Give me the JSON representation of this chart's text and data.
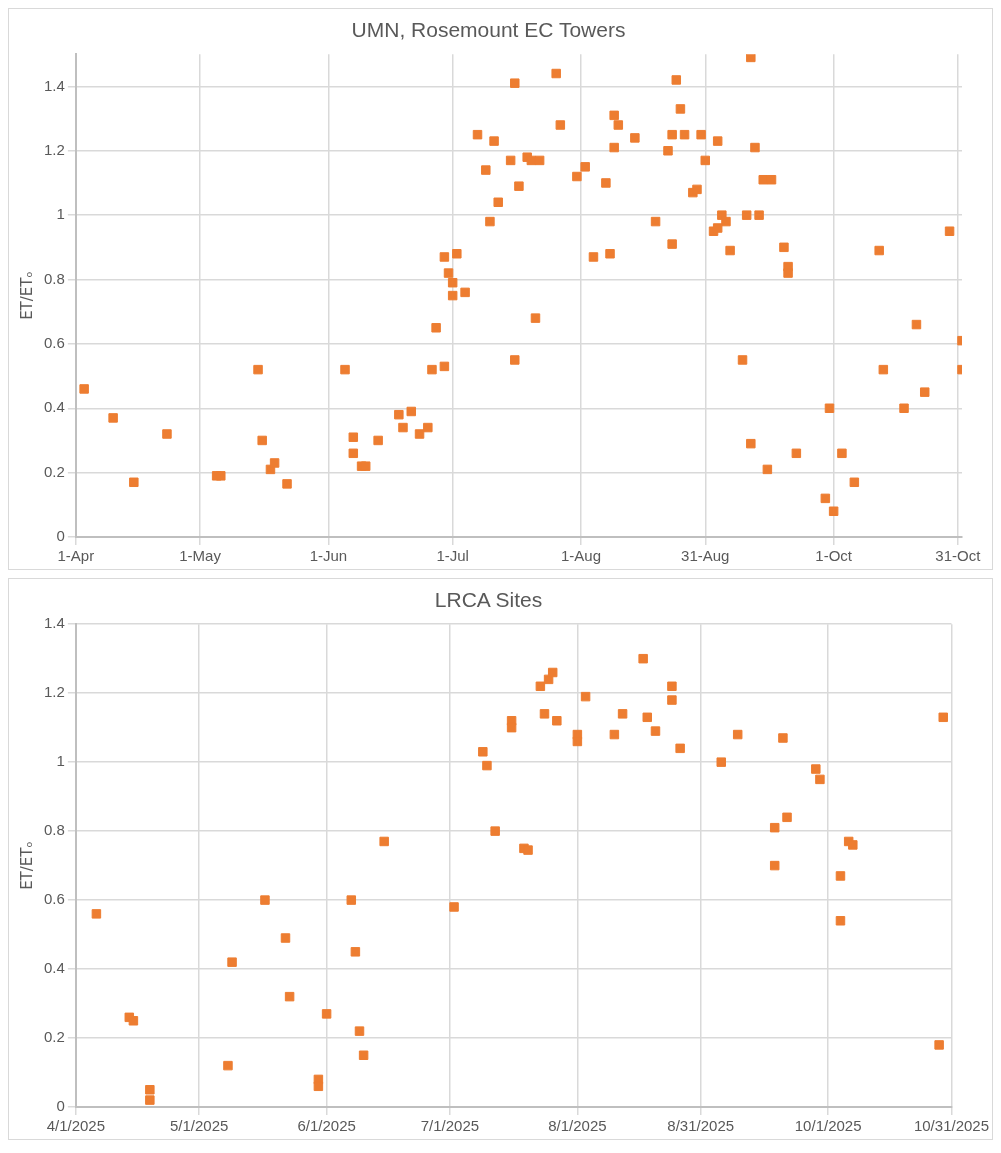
{
  "chart_data": [
    {
      "type": "scatter",
      "title": "UMN, Rosemount EC Towers",
      "ylabel": "ET/ETₒ",
      "color": "#ed7d31",
      "marker": "square",
      "grid": true,
      "legend": false,
      "x": [
        "--04-03",
        "--04-10",
        "--04-15",
        "--04-23",
        "--05-05",
        "--05-06",
        "--05-15",
        "--05-16",
        "--05-18",
        "--05-19",
        "--05-22",
        "--06-05",
        "--06-07",
        "--06-07",
        "--06-09",
        "--06-10",
        "--06-13",
        "--06-18",
        "--06-19",
        "--06-21",
        "--06-23",
        "--06-25",
        "--06-26",
        "--06-27",
        "--06-29",
        "--06-29",
        "--06-30",
        "--07-01",
        "--07-01",
        "--07-02",
        "--07-04",
        "--07-07",
        "--07-09",
        "--07-10",
        "--07-11",
        "--07-12",
        "--07-15",
        "--07-16",
        "--07-16",
        "--07-17",
        "--07-19",
        "--07-20",
        "--07-21",
        "--07-22",
        "--07-26",
        "--07-27",
        "--07-31",
        "--08-02",
        "--08-04",
        "--08-07",
        "--08-08",
        "--08-09",
        "--08-09",
        "--08-10",
        "--08-14",
        "--08-19",
        "--08-22",
        "--08-23",
        "--08-23",
        "--08-24",
        "--08-25",
        "--08-26",
        "--08-28",
        "--08-29",
        "--08-30",
        "--08-31",
        "--09-02",
        "--09-03",
        "--09-03",
        "--09-04",
        "--09-05",
        "--09-06",
        "--09-09",
        "--09-10",
        "--09-11",
        "--09-11",
        "--09-12",
        "--09-13",
        "--09-14",
        "--09-15",
        "--09-16",
        "--09-19",
        "--09-20",
        "--09-20",
        "--09-22",
        "--09-29",
        "--09-30",
        "--10-01",
        "--10-03",
        "--10-06",
        "--10-12",
        "--10-13",
        "--10-18",
        "--10-21",
        "--10-23",
        "--10-29",
        "--11-01",
        "--11-01"
      ],
      "values": [
        0.46,
        0.37,
        0.17,
        0.32,
        0.19,
        0.19,
        0.52,
        0.3,
        0.21,
        0.23,
        0.165,
        0.52,
        0.31,
        0.26,
        0.22,
        0.22,
        0.3,
        0.38,
        0.34,
        0.39,
        0.32,
        0.34,
        0.52,
        0.65,
        0.53,
        0.87,
        0.82,
        0.79,
        0.75,
        0.88,
        0.76,
        1.25,
        1.14,
        0.98,
        1.23,
        1.04,
        1.17,
        1.41,
        0.55,
        1.09,
        1.18,
        1.17,
        0.68,
        1.17,
        1.44,
        1.28,
        1.12,
        1.15,
        0.87,
        1.1,
        0.88,
        1.31,
        1.21,
        1.28,
        1.24,
        0.98,
        1.2,
        0.91,
        1.25,
        1.42,
        1.33,
        1.25,
        1.07,
        1.08,
        1.25,
        1.17,
        0.95,
        0.96,
        1.23,
        1.0,
        0.98,
        0.89,
        0.55,
        1.0,
        0.29,
        1.49,
        1.21,
        1.0,
        1.11,
        0.21,
        1.11,
        0.9,
        0.84,
        0.82,
        0.26,
        0.12,
        0.4,
        0.08,
        0.26,
        0.17,
        0.89,
        0.52,
        0.4,
        0.66,
        0.45,
        0.95,
        0.61,
        0.52
      ],
      "xlim": [
        "--04-01",
        "--11-01"
      ],
      "xticks": [
        {
          "value": "--04-01",
          "label": "1-Apr"
        },
        {
          "value": "--05-01",
          "label": "1-May"
        },
        {
          "value": "--06-01",
          "label": "1-Jun"
        },
        {
          "value": "--07-01",
          "label": "1-Jul"
        },
        {
          "value": "--08-01",
          "label": "1-Aug"
        },
        {
          "value": "--08-31",
          "label": "31-Aug"
        },
        {
          "value": "--10-01",
          "label": "1-Oct"
        },
        {
          "value": "--10-31",
          "label": "31-Oct"
        }
      ],
      "ylim": [
        0,
        1.5
      ],
      "yticks": [
        0,
        0.2,
        0.4,
        0.6,
        0.8,
        1,
        1.2,
        1.4
      ]
    },
    {
      "type": "scatter",
      "title": "LRCA Sites",
      "ylabel": "ET/ETₒ",
      "color": "#ed7d31",
      "marker": "square",
      "grid": true,
      "legend": false,
      "x": [
        "2025-04-06",
        "2025-04-14",
        "2025-04-15",
        "2025-04-19",
        "2025-04-19",
        "2025-05-08",
        "2025-05-09",
        "2025-05-17",
        "2025-05-22",
        "2025-05-23",
        "2025-05-30",
        "2025-05-30",
        "2025-06-01",
        "2025-06-07",
        "2025-06-08",
        "2025-06-09",
        "2025-06-10",
        "2025-06-15",
        "2025-07-02",
        "2025-07-09",
        "2025-07-10",
        "2025-07-12",
        "2025-07-16",
        "2025-07-16",
        "2025-07-19",
        "2025-07-20",
        "2025-07-23",
        "2025-07-24",
        "2025-07-25",
        "2025-07-26",
        "2025-07-27",
        "2025-08-01",
        "2025-08-01",
        "2025-08-03",
        "2025-08-10",
        "2025-08-12",
        "2025-08-17",
        "2025-08-18",
        "2025-08-20",
        "2025-08-24",
        "2025-08-24",
        "2025-08-26",
        "2025-09-05",
        "2025-09-09",
        "2025-09-18",
        "2025-09-18",
        "2025-09-20",
        "2025-09-21",
        "2025-09-28",
        "2025-09-29",
        "2025-10-04",
        "2025-10-04",
        "2025-10-06",
        "2025-10-07",
        "2025-10-28",
        "2025-10-29"
      ],
      "values": [
        0.56,
        0.26,
        0.25,
        0.05,
        0.02,
        0.12,
        0.42,
        0.6,
        0.49,
        0.32,
        0.08,
        0.06,
        0.27,
        0.6,
        0.45,
        0.22,
        0.15,
        0.77,
        0.58,
        1.03,
        0.99,
        0.8,
        1.12,
        1.1,
        0.75,
        0.745,
        1.22,
        1.14,
        1.24,
        1.26,
        1.12,
        1.08,
        1.06,
        1.19,
        1.08,
        1.14,
        1.3,
        1.13,
        1.09,
        1.22,
        1.18,
        1.04,
        1.0,
        1.08,
        0.81,
        0.7,
        1.07,
        0.84,
        0.98,
        0.95,
        0.67,
        0.54,
        0.77,
        0.76,
        0.18,
        1.13
      ],
      "xlim": [
        "2025-04-01",
        "2025-10-31"
      ],
      "xticks": [
        {
          "value": "2025-04-01",
          "label": "4/1/2025"
        },
        {
          "value": "2025-05-01",
          "label": "5/1/2025"
        },
        {
          "value": "2025-06-01",
          "label": "6/1/2025"
        },
        {
          "value": "2025-07-01",
          "label": "7/1/2025"
        },
        {
          "value": "2025-08-01",
          "label": "8/1/2025"
        },
        {
          "value": "2025-08-31",
          "label": "8/31/2025"
        },
        {
          "value": "2025-10-01",
          "label": "10/1/2025"
        },
        {
          "value": "2025-10-31",
          "label": "10/31/2025"
        }
      ],
      "ylim": [
        0,
        1.4
      ],
      "yticks": [
        0,
        0.2,
        0.4,
        0.6,
        0.8,
        1,
        1.2,
        1.4
      ]
    }
  ]
}
